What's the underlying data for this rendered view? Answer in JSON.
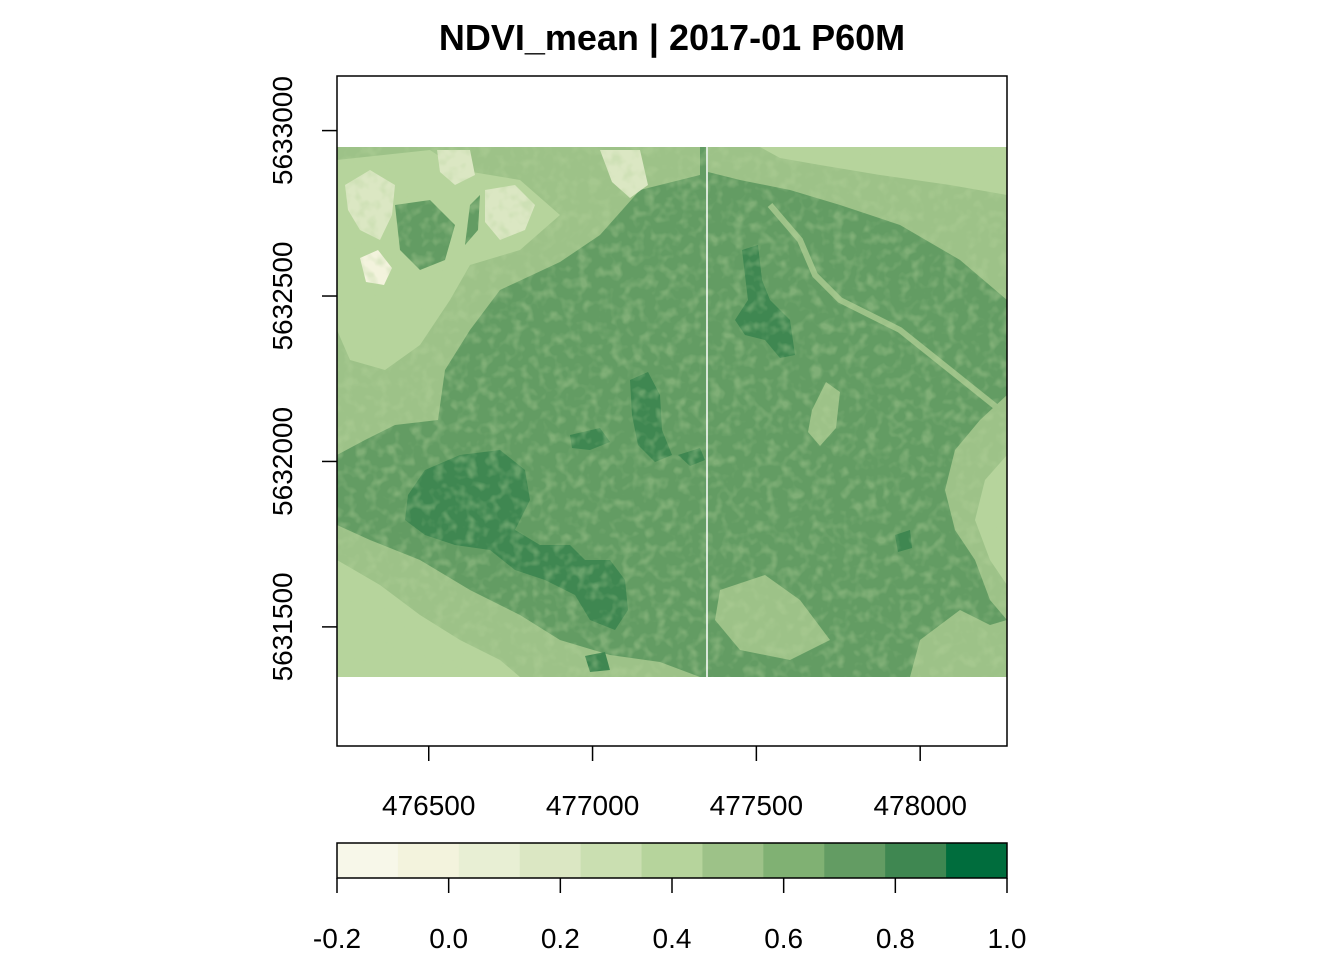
{
  "title": "NDVI_mean | 2017-01 P60M",
  "x_axis": {
    "ticks": [
      476500,
      477000,
      477500,
      478000
    ],
    "labels": [
      "476500",
      "477000",
      "477500",
      "478000"
    ],
    "range": [
      476220,
      478265
    ]
  },
  "y_axis": {
    "ticks": [
      5633000,
      5632500,
      5632000,
      5631500
    ],
    "labels": [
      "5633000",
      "5632500",
      "5632000",
      "5631500"
    ],
    "range": [
      5631140,
      5633165
    ]
  },
  "raster_extent": {
    "x": [
      476220,
      478265
    ],
    "y": [
      5631305,
      5632925
    ]
  },
  "legend": {
    "colors": [
      "#f7f7e9",
      "#f3f3dd",
      "#e8efd4",
      "#dbe7c3",
      "#cadfb1",
      "#b6d49c",
      "#9dc288",
      "#80b173",
      "#639c63",
      "#3f8751",
      "#006d3d"
    ],
    "tick_values": [
      -0.2,
      0.0,
      0.2,
      0.4,
      0.6,
      0.8,
      1.0
    ],
    "tick_labels": [
      "-0.2",
      "0.0",
      "0.2",
      "0.4",
      "0.6",
      "0.8",
      "1.0"
    ],
    "range": [
      -0.2,
      1.0
    ]
  },
  "map_colors": {
    "base": "#639c63",
    "dark": "#3f8751",
    "light": "#9dc288",
    "lighter": "#b6d49c",
    "pale": "#dbe7c3",
    "palest": "#f3f3dd",
    "seam": "#ffffff"
  }
}
